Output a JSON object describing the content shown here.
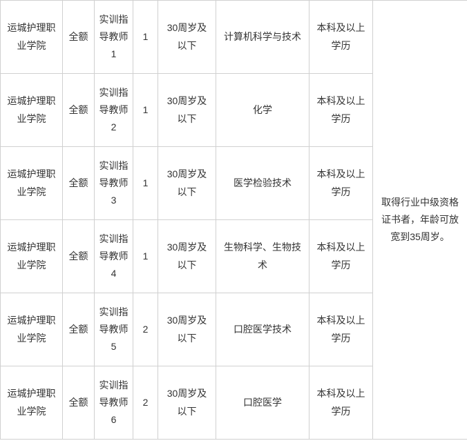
{
  "table": {
    "rows": [
      {
        "institution": "运城护理职业学院",
        "funding": "全额",
        "position": "实训指导教师1",
        "count": "1",
        "age": "30周岁及以下",
        "major": "计算机科学与技术",
        "education": "本科及以上学历"
      },
      {
        "institution": "运城护理职业学院",
        "funding": "全额",
        "position": "实训指导教师2",
        "count": "1",
        "age": "30周岁及以下",
        "major": "化学",
        "education": "本科及以上学历"
      },
      {
        "institution": "运城护理职业学院",
        "funding": "全额",
        "position": "实训指导教师3",
        "count": "1",
        "age": "30周岁及以下",
        "major": "医学检验技术",
        "education": "本科及以上学历"
      },
      {
        "institution": "运城护理职业学院",
        "funding": "全额",
        "position": "实训指导教师4",
        "count": "1",
        "age": "30周岁及以下",
        "major": "生物科学、生物技术",
        "education": "本科及以上学历"
      },
      {
        "institution": "运城护理职业学院",
        "funding": "全额",
        "position": "实训指导教师5",
        "count": "2",
        "age": "30周岁及以下",
        "major": "口腔医学技术",
        "education": "本科及以上学历"
      },
      {
        "institution": "运城护理职业学院",
        "funding": "全额",
        "position": "实训指导教师6",
        "count": "2",
        "age": "30周岁及以下",
        "major": "口腔医学",
        "education": "本科及以上学历"
      }
    ],
    "note": "取得行业中级资格证书者，年龄可放宽到35周岁。",
    "colors": {
      "border": "#d0d0d0",
      "text": "#333333",
      "background": "#ffffff"
    },
    "font_size": 14
  }
}
